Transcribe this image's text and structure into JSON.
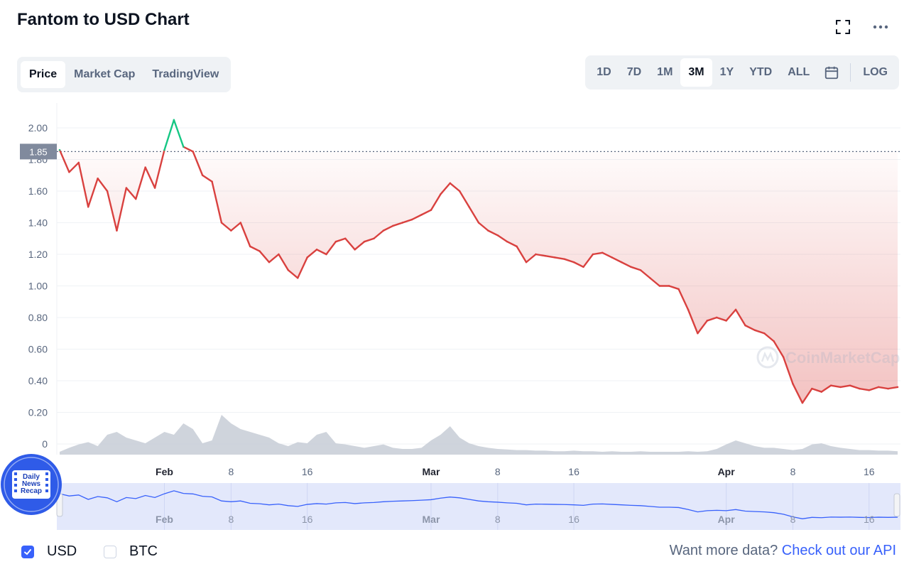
{
  "title": "Fantom to USD Chart",
  "icons": {
    "fullscreen": "fullscreen-icon",
    "more": "more-icon",
    "calendar": "calendar-icon",
    "check": "check-icon"
  },
  "tabs": [
    {
      "label": "Price",
      "active": true
    },
    {
      "label": "Market Cap",
      "active": false
    },
    {
      "label": "TradingView",
      "active": false
    }
  ],
  "ranges": [
    {
      "label": "1D",
      "active": false
    },
    {
      "label": "7D",
      "active": false
    },
    {
      "label": "1M",
      "active": false
    },
    {
      "label": "3M",
      "active": true
    },
    {
      "label": "1Y",
      "active": false
    },
    {
      "label": "YTD",
      "active": false
    },
    {
      "label": "ALL",
      "active": false
    }
  ],
  "log_label": "LOG",
  "watermark": "CoinMarketCap",
  "badge": {
    "lines": [
      "Daily",
      "News",
      "Recap"
    ]
  },
  "currency": [
    {
      "label": "USD",
      "checked": true
    },
    {
      "label": "BTC",
      "checked": false
    }
  ],
  "api": {
    "prompt": "Want more data?",
    "link": "Check out our API"
  },
  "colors": {
    "up": "#16c784",
    "down": "#d9413f",
    "accent": "#3861fb",
    "volume": "#c7ccd6",
    "navigator_fill": "#e3e8fb",
    "navigator_line": "#3861fb"
  },
  "chart_data": {
    "type": "line",
    "series": [
      {
        "x": [
          "Jan 21",
          "Jan 22",
          "Jan 23",
          "Jan 24",
          "Jan 25",
          "Jan 26",
          "Jan 27",
          "Jan 28",
          "Jan 29",
          "Jan 30",
          "Jan 31",
          "Feb 1",
          "Feb 2",
          "Feb 3",
          "Feb 4",
          "Feb 5",
          "Feb 6",
          "Feb 7",
          "Feb 8",
          "Feb 9",
          "Feb 10",
          "Feb 11",
          "Feb 12",
          "Feb 13",
          "Feb 14",
          "Feb 15",
          "Feb 16",
          "Feb 17",
          "Feb 18",
          "Feb 19",
          "Feb 20",
          "Feb 21",
          "Feb 22",
          "Feb 23",
          "Feb 24",
          "Feb 25",
          "Feb 26",
          "Feb 27",
          "Feb 28",
          "Mar 1",
          "Mar 2",
          "Mar 3",
          "Mar 4",
          "Mar 5",
          "Mar 6",
          "Mar 7",
          "Mar 8",
          "Mar 9",
          "Mar 10",
          "Mar 11",
          "Mar 12",
          "Mar 13",
          "Mar 14",
          "Mar 15",
          "Mar 16",
          "Mar 17",
          "Mar 18",
          "Mar 19",
          "Mar 20",
          "Mar 21",
          "Mar 22",
          "Mar 23",
          "Mar 24",
          "Mar 25",
          "Mar 26",
          "Mar 27",
          "Mar 28",
          "Mar 29",
          "Mar 30",
          "Mar 31",
          "Apr 1",
          "Apr 2",
          "Apr 3",
          "Apr 4",
          "Apr 5",
          "Apr 6",
          "Apr 7",
          "Apr 8",
          "Apr 9",
          "Apr 10",
          "Apr 11",
          "Apr 12",
          "Apr 13",
          "Apr 14",
          "Apr 15",
          "Apr 16",
          "Apr 17",
          "Apr 18",
          "Apr 19"
        ],
        "y": [
          1.86,
          1.72,
          1.78,
          1.5,
          1.68,
          1.6,
          1.35,
          1.62,
          1.55,
          1.75,
          1.62,
          1.86,
          2.05,
          1.88,
          1.85,
          1.7,
          1.66,
          1.4,
          1.35,
          1.4,
          1.25,
          1.22,
          1.15,
          1.2,
          1.1,
          1.05,
          1.18,
          1.23,
          1.2,
          1.28,
          1.3,
          1.23,
          1.28,
          1.3,
          1.35,
          1.38,
          1.4,
          1.42,
          1.45,
          1.48,
          1.58,
          1.65,
          1.6,
          1.5,
          1.4,
          1.35,
          1.32,
          1.28,
          1.25,
          1.15,
          1.2,
          1.19,
          1.18,
          1.17,
          1.15,
          1.12,
          1.2,
          1.21,
          1.18,
          1.15,
          1.12,
          1.1,
          1.05,
          1.0,
          1.0,
          0.98,
          0.85,
          0.7,
          0.78,
          0.8,
          0.78,
          0.85,
          0.75,
          0.72,
          0.7,
          0.65,
          0.55,
          0.38,
          0.26,
          0.35,
          0.33,
          0.37,
          0.36,
          0.37,
          0.35,
          0.34,
          0.36,
          0.35,
          0.36
        ]
      }
    ],
    "volume": [
      0.05,
      0.12,
      0.18,
      0.22,
      0.15,
      0.35,
      0.4,
      0.3,
      0.25,
      0.2,
      0.3,
      0.4,
      0.35,
      0.55,
      0.45,
      0.2,
      0.25,
      0.7,
      0.55,
      0.45,
      0.4,
      0.35,
      0.3,
      0.2,
      0.15,
      0.22,
      0.2,
      0.35,
      0.4,
      0.2,
      0.18,
      0.15,
      0.12,
      0.15,
      0.18,
      0.12,
      0.1,
      0.1,
      0.12,
      0.25,
      0.35,
      0.5,
      0.3,
      0.2,
      0.15,
      0.12,
      0.1,
      0.09,
      0.08,
      0.08,
      0.07,
      0.07,
      0.06,
      0.06,
      0.07,
      0.06,
      0.06,
      0.05,
      0.06,
      0.05,
      0.05,
      0.06,
      0.05,
      0.05,
      0.05,
      0.05,
      0.06,
      0.05,
      0.06,
      0.1,
      0.18,
      0.25,
      0.2,
      0.15,
      0.12,
      0.12,
      0.1,
      0.08,
      0.1,
      0.18,
      0.2,
      0.15,
      0.12,
      0.1,
      0.08,
      0.08,
      0.07,
      0.07,
      0.06
    ],
    "ylim": [
      0,
      2.08
    ],
    "yticks": [
      "0",
      "0.20",
      "0.40",
      "0.60",
      "0.80",
      "1.00",
      "1.20",
      "1.40",
      "1.60",
      "1.80",
      "2.00"
    ],
    "xticks": [
      "Feb",
      "8",
      "16",
      "Mar",
      "8",
      "16",
      "Apr",
      "8",
      "16"
    ],
    "xtick_positions": [
      "Feb 1",
      "Feb 8",
      "Feb 16",
      "Mar 1",
      "Mar 8",
      "Mar 16",
      "Apr 1",
      "Apr 8",
      "Apr 16"
    ],
    "reference_label": "1.85",
    "reference_value": 1.85,
    "navigator_xticks": [
      "Feb",
      "8",
      "16",
      "Mar",
      "8",
      "16",
      "Apr",
      "8",
      "16"
    ],
    "grid": true
  }
}
